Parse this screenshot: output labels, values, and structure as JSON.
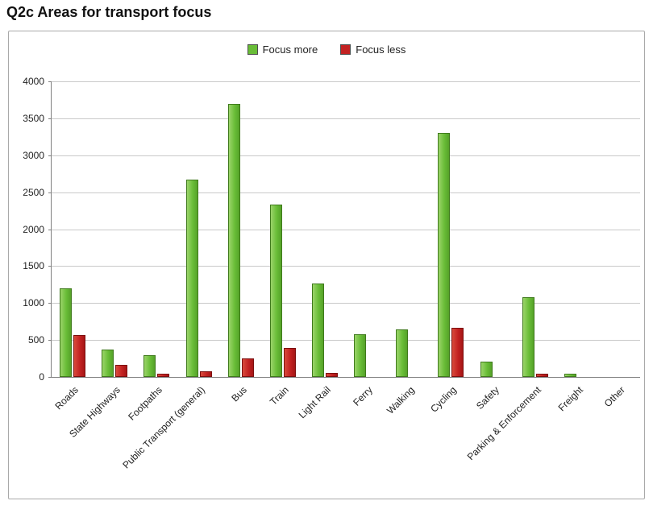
{
  "chart_data": {
    "type": "bar",
    "title": "Q2c Areas for transport focus",
    "categories": [
      "Roads",
      "State Highways",
      "Footpaths",
      "Public Transport (general)",
      "Bus",
      "Train",
      "Light Rail",
      "Ferry",
      "Walking",
      "Cycling",
      "Safety",
      "Parking & Enforcement",
      "Freight",
      "Other"
    ],
    "series": [
      {
        "name": "Focus more",
        "values": [
          1200,
          370,
          300,
          2670,
          3690,
          2330,
          1260,
          580,
          640,
          3300,
          210,
          1080,
          40,
          0
        ],
        "fill": "#69bd37",
        "fill_light": "#9bd46a",
        "fill_dark": "#55a229",
        "border": "#3f7a1c"
      },
      {
        "name": "Focus less",
        "values": [
          570,
          160,
          40,
          80,
          250,
          390,
          60,
          0,
          0,
          660,
          0,
          40,
          0,
          0
        ],
        "fill": "#c32222",
        "fill_light": "#d84b3c",
        "fill_dark": "#a51616",
        "border": "#7c0f0f"
      }
    ],
    "ylim": [
      0,
      4000
    ],
    "ytick_step": 500,
    "ytick_labels": [
      "0",
      "500",
      "1000",
      "1500",
      "2000",
      "2500",
      "3000",
      "3500",
      "4000"
    ],
    "grid": true,
    "legend_position": "top",
    "axis_color": "#808080",
    "gridline_color": "#c9c9c9"
  }
}
